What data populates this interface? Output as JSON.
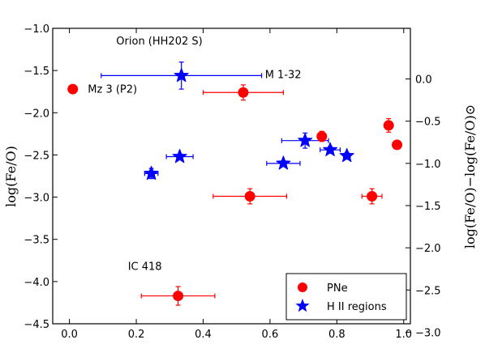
{
  "chart_data": {
    "type": "scatter",
    "title": "",
    "xlabel": "",
    "ylabel": "log(Fe/O)",
    "y2label": "log(Fe/O)−log(Fe/O)⊙",
    "xlim": [
      -0.05,
      1.02
    ],
    "ylim": [
      -4.5,
      -1.0
    ],
    "y2_offset": 1.6,
    "x_ticks": [
      0.0,
      0.2,
      0.4,
      0.6,
      0.8,
      1.0
    ],
    "x_tick_labels": [
      "0.0",
      "0.2",
      "0.4",
      "0.6",
      "0.8",
      "1.0"
    ],
    "y_ticks": [
      -1.0,
      -1.5,
      -2.0,
      -2.5,
      -3.0,
      -3.5,
      -4.0,
      -4.5
    ],
    "y_tick_labels": [
      "−1.0",
      "−1.5",
      "−2.0",
      "−2.5",
      "−3.0",
      "−3.5",
      "−4.0",
      "−4.5"
    ],
    "y2_ticks": [
      0.0,
      -0.5,
      -1.0,
      -1.5,
      -2.0,
      -2.5,
      -3.0
    ],
    "y2_tick_labels": [
      "0.0",
      "−0.5",
      "−1.0",
      "−1.5",
      "−2.0",
      "−2.5",
      "−3.0"
    ],
    "grid": false,
    "legend_position": "bottom-right",
    "series": [
      {
        "name": "PNe",
        "marker": "circle",
        "color": "#ff0000",
        "points": [
          {
            "x": 0.01,
            "y": -1.72,
            "xerr": 0.0,
            "yerr": 0.05
          },
          {
            "x": 0.52,
            "y": -1.76,
            "xerr": 0.12,
            "yerr": 0.09
          },
          {
            "x": 0.755,
            "y": -2.28,
            "xerr": 0.01,
            "yerr": 0.06
          },
          {
            "x": 0.955,
            "y": -2.15,
            "xerr": 0.01,
            "yerr": 0.08
          },
          {
            "x": 0.98,
            "y": -2.38,
            "xerr": 0.0,
            "yerr": 0.0
          },
          {
            "x": 0.54,
            "y": -2.99,
            "xerr": 0.11,
            "yerr": 0.09
          },
          {
            "x": 0.905,
            "y": -2.99,
            "xerr": 0.03,
            "yerr": 0.09
          },
          {
            "x": 0.325,
            "y": -4.17,
            "xerr": 0.11,
            "yerr": 0.11
          }
        ]
      },
      {
        "name": "H II regions",
        "marker": "star",
        "color": "#0000ff",
        "points": [
          {
            "x": 0.335,
            "y": -1.56,
            "xerr": 0.24,
            "yerr": 0.16
          },
          {
            "x": 0.245,
            "y": -2.72,
            "xerr": 0.02,
            "yerr": 0.06
          },
          {
            "x": 0.33,
            "y": -2.52,
            "xerr": 0.04,
            "yerr": 0.03
          },
          {
            "x": 0.64,
            "y": -2.6,
            "xerr": 0.05,
            "yerr": 0.03
          },
          {
            "x": 0.705,
            "y": -2.33,
            "xerr": 0.07,
            "yerr": 0.09
          },
          {
            "x": 0.78,
            "y": -2.44,
            "xerr": 0.03,
            "yerr": 0.04
          },
          {
            "x": 0.83,
            "y": -2.51,
            "xerr": 0.01,
            "yerr": 0.04
          }
        ]
      }
    ],
    "annotations": [
      {
        "text": "Orion (HH202 S)",
        "x": 0.14,
        "y": -1.19
      },
      {
        "text": "Mz 3 (P2)",
        "x": 0.055,
        "y": -1.76
      },
      {
        "text": "M 1-32",
        "x": 0.585,
        "y": -1.59
      },
      {
        "text": "IC 418",
        "x": 0.175,
        "y": -3.86
      }
    ],
    "legend": [
      {
        "label": "PNe",
        "marker": "circle",
        "color": "#ff0000"
      },
      {
        "label": "H II regions",
        "marker": "star",
        "color": "#0000ff"
      }
    ]
  }
}
